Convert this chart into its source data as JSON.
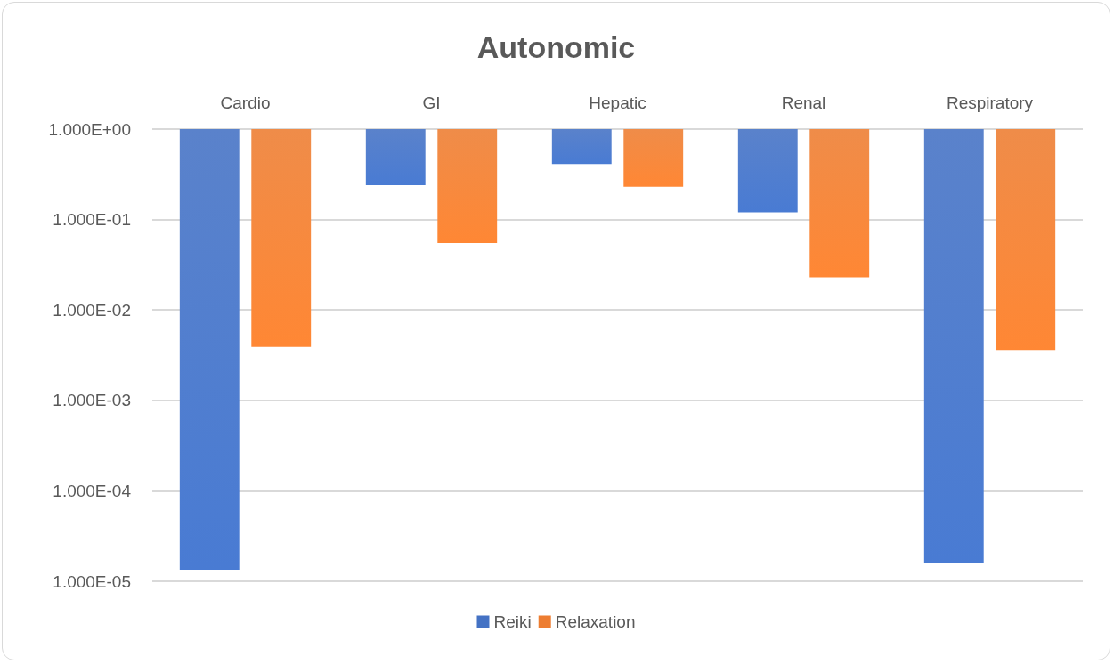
{
  "chart_data": {
    "type": "bar",
    "title": "Autonomic",
    "categories": [
      "Cardio",
      "GI",
      "Hepatic",
      "Renal",
      "Respiratory"
    ],
    "series": [
      {
        "name": "Reiki",
        "color": "#4472c4",
        "base": [
          1,
          1,
          1,
          1,
          1
        ],
        "values": [
          -0.9999866,
          -0.76,
          -0.59,
          -0.88,
          -0.999984
        ]
      },
      {
        "name": "Relaxation",
        "color": "#ed7d31",
        "base": [
          1,
          1,
          1,
          1,
          1
        ],
        "values": [
          -0.9961,
          -0.945,
          -0.77,
          -0.977,
          -0.9964
        ]
      }
    ],
    "log": "y",
    "ylim": [
      1e-05,
      1
    ],
    "yticks": [
      {
        "value": 1,
        "label": "1.000E+00"
      },
      {
        "value": 0.1,
        "label": "1.000E-01"
      },
      {
        "value": 0.01,
        "label": "1.000E-02"
      },
      {
        "value": 0.001,
        "label": "1.000E-03"
      },
      {
        "value": 0.0001,
        "label": "1.000E-04"
      },
      {
        "value": 1e-05,
        "label": "1.000E-05"
      }
    ],
    "grid": "y",
    "legend": "bottom"
  }
}
